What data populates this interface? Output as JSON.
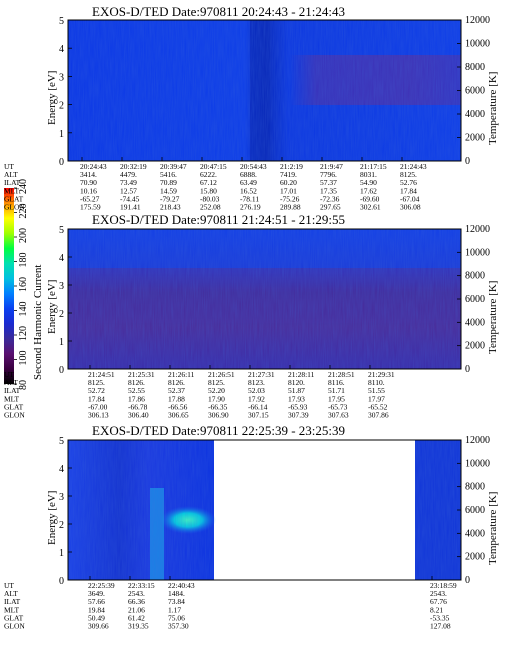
{
  "colorbar": {
    "label": "Second Harmonic Current",
    "ticks": [
      "80",
      "100",
      "120",
      "140",
      "160",
      "180",
      "200",
      "220",
      "240"
    ],
    "colors": [
      "#000000",
      "#3a0040",
      "#5a1070",
      "#3a2a9a",
      "#1a2ad0",
      "#0a40f0",
      "#0080ff",
      "#00c0e0",
      "#00e0b0",
      "#00ff40",
      "#a0ff00",
      "#ffff00",
      "#ff9000",
      "#ff0000"
    ]
  },
  "chart_data": [
    {
      "type": "heatmap",
      "title": "EXOS-D/TED   Date:970811   20:24:43 - 21:24:43",
      "ylabel": "Energy [eV]",
      "ylabel_right": "Temperature [K]",
      "ylim": [
        0,
        5
      ],
      "yticks": [
        "0",
        "1",
        "2",
        "3",
        "4",
        "5"
      ],
      "ylim_right": [
        0,
        12000
      ],
      "yticks_right": [
        "0",
        "2000",
        "4000",
        "6000",
        "8000",
        "10000",
        "12000"
      ],
      "row_labels": [
        "UT",
        "ALT",
        "ILAT",
        "MLT",
        "GLAT",
        "GLON"
      ],
      "columns": [
        {
          "UT": "20:24:43",
          "ALT": "3414.",
          "ILAT": "70.90",
          "MLT": "10.16",
          "GLAT": "-65.27",
          "GLON": "175.59"
        },
        {
          "UT": "20:32:19",
          "ALT": "4479.",
          "ILAT": "73.49",
          "MLT": "12.57",
          "GLAT": "-74.45",
          "GLON": "191.41"
        },
        {
          "UT": "20:39:47",
          "ALT": "5416.",
          "ILAT": "70.89",
          "MLT": "14.59",
          "GLAT": "-79.27",
          "GLON": "218.43"
        },
        {
          "UT": "20:47:15",
          "ALT": "6222.",
          "ILAT": "67.12",
          "MLT": "15.80",
          "GLAT": "-80.03",
          "GLON": "252.08"
        },
        {
          "UT": "20:54:43",
          "ALT": "6888.",
          "ILAT": "63.49",
          "MLT": "16.52",
          "GLAT": "-78.11",
          "GLON": "276.19"
        },
        {
          "UT": "21:2:19",
          "ALT": "7419.",
          "ILAT": "60.20",
          "MLT": "17.01",
          "GLAT": "-75.26",
          "GLON": "289.88"
        },
        {
          "UT": "21:9:47",
          "ALT": "7796.",
          "ILAT": "57.37",
          "MLT": "17.35",
          "GLAT": "-72.36",
          "GLON": "297.65"
        },
        {
          "UT": "21:17:15",
          "ALT": "8031.",
          "ILAT": "54.90",
          "MLT": "17.62",
          "GLAT": "-69.60",
          "GLON": "302.61"
        },
        {
          "UT": "21:24:43",
          "ALT": "8125.",
          "ILAT": "52.76",
          "MLT": "17.84",
          "GLAT": "-67.04",
          "GLON": "306.08"
        }
      ]
    },
    {
      "type": "heatmap",
      "title": "EXOS-D/TED   Date:970811   21:24:51 - 21:29:55",
      "ylabel": "Energy [eV]",
      "ylabel_right": "Temperature [K]",
      "ylim": [
        0,
        5
      ],
      "yticks": [
        "0",
        "1",
        "2",
        "3",
        "4",
        "5"
      ],
      "ylim_right": [
        0,
        12000
      ],
      "yticks_right": [
        "0",
        "2000",
        "4000",
        "6000",
        "8000",
        "10000",
        "12000"
      ],
      "row_labels": [
        "UT",
        "ALT",
        "ILAT",
        "MLT",
        "GLAT",
        "GLON"
      ],
      "columns": [
        {
          "UT": "21:24:51",
          "ALT": "8125.",
          "ILAT": "52.72",
          "MLT": "17.84",
          "GLAT": "-67.00",
          "GLON": "306.13"
        },
        {
          "UT": "21:25:31",
          "ALT": "8126.",
          "ILAT": "52.55",
          "MLT": "17.86",
          "GLAT": "-66.78",
          "GLON": "306.40"
        },
        {
          "UT": "21:26:11",
          "ALT": "8126.",
          "ILAT": "52.37",
          "MLT": "17.88",
          "GLAT": "-66.56",
          "GLON": "306.65"
        },
        {
          "UT": "21:26:51",
          "ALT": "8125.",
          "ILAT": "52.20",
          "MLT": "17.90",
          "GLAT": "-66.35",
          "GLON": "306.90"
        },
        {
          "UT": "21:27:31",
          "ALT": "8123.",
          "ILAT": "52.03",
          "MLT": "17.92",
          "GLAT": "-66.14",
          "GLON": "307.15"
        },
        {
          "UT": "21:28:11",
          "ALT": "8120.",
          "ILAT": "51.87",
          "MLT": "17.93",
          "GLAT": "-65.93",
          "GLON": "307.39"
        },
        {
          "UT": "21:28:51",
          "ALT": "8116.",
          "ILAT": "51.71",
          "MLT": "17.95",
          "GLAT": "-65.73",
          "GLON": "307.63"
        },
        {
          "UT": "21:29:31",
          "ALT": "8110.",
          "ILAT": "51.55",
          "MLT": "17.97",
          "GLAT": "-65.52",
          "GLON": "307.86"
        }
      ]
    },
    {
      "type": "heatmap",
      "title": "EXOS-D/TED   Date:970811   22:25:39 - 23:25:39",
      "ylabel": "Energy [eV]",
      "ylabel_right": "Temperature [K]",
      "ylim": [
        0,
        5
      ],
      "yticks": [
        "0",
        "1",
        "2",
        "3",
        "4",
        "5"
      ],
      "ylim_right": [
        0,
        12000
      ],
      "yticks_right": [
        "0",
        "2000",
        "4000",
        "6000",
        "8000",
        "10000",
        "12000"
      ],
      "row_labels": [
        "UT",
        "ALT",
        "ILAT",
        "MLT",
        "GLAT",
        "GLON"
      ],
      "columns": [
        {
          "UT": "22:25:39",
          "ALT": "3649.",
          "ILAT": "57.66",
          "MLT": "19.84",
          "GLAT": "50.49",
          "GLON": "309.66"
        },
        {
          "UT": "22:33:15",
          "ALT": "2543.",
          "ILAT": "66.36",
          "MLT": "21.06",
          "GLAT": "61.42",
          "GLON": "319.35"
        },
        {
          "UT": "22:40:43",
          "ALT": "1484.",
          "ILAT": "73.84",
          "MLT": "1.17",
          "GLAT": "75.06",
          "GLON": "357.30"
        },
        {
          "UT": "23:18:59",
          "ALT": "2543.",
          "ILAT": "67.76",
          "MLT": "8.21",
          "GLAT": "-53.35",
          "GLON": "127.08"
        }
      ]
    }
  ]
}
